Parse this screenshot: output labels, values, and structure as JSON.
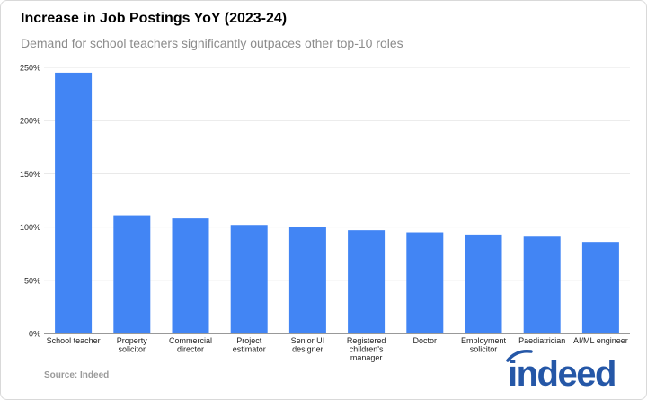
{
  "title": "Increase in Job Postings YoY (2023-24)",
  "subtitle": "Demand for school teachers significantly outpaces other top-10 roles",
  "source": "Source: Indeed",
  "logo_text": "indeed",
  "colors": {
    "bar": "#4285f4",
    "brand": "#2557a7",
    "grid": "#e6e6e6",
    "axis": "#333333",
    "text": "#222222",
    "muted": "#9a9a9a"
  },
  "chart_data": {
    "type": "bar",
    "title": "Increase in Job Postings YoY (2023-24)",
    "subtitle": "Demand for school teachers significantly outpaces other top-10 roles",
    "categories": [
      "School teacher",
      "Property solicitor",
      "Commercial director",
      "Project estimator",
      "Senior UI designer",
      "Registered children's manager",
      "Doctor",
      "Employment solicitor",
      "Paediatrician",
      "AI/ML engineer"
    ],
    "category_label_lines": [
      [
        "School teacher"
      ],
      [
        "Property",
        "solicitor"
      ],
      [
        "Commercial",
        "director"
      ],
      [
        "Project",
        "estimator"
      ],
      [
        "Senior UI",
        "designer"
      ],
      [
        "Registered",
        "children's",
        "manager"
      ],
      [
        "Doctor"
      ],
      [
        "Employment",
        "solicitor"
      ],
      [
        "Paediatrician"
      ],
      [
        "AI/ML engineer"
      ]
    ],
    "values": [
      245,
      111,
      108,
      102,
      100,
      97,
      95,
      93,
      91,
      86
    ],
    "unit": "%",
    "xlabel": "",
    "ylabel": "",
    "ylim": [
      0,
      250
    ],
    "yticks": [
      0,
      50,
      100,
      150,
      200,
      250
    ],
    "ytick_labels": [
      "0%",
      "50%",
      "100%",
      "150%",
      "200%",
      "250%"
    ],
    "grid": true,
    "legend": "none"
  }
}
